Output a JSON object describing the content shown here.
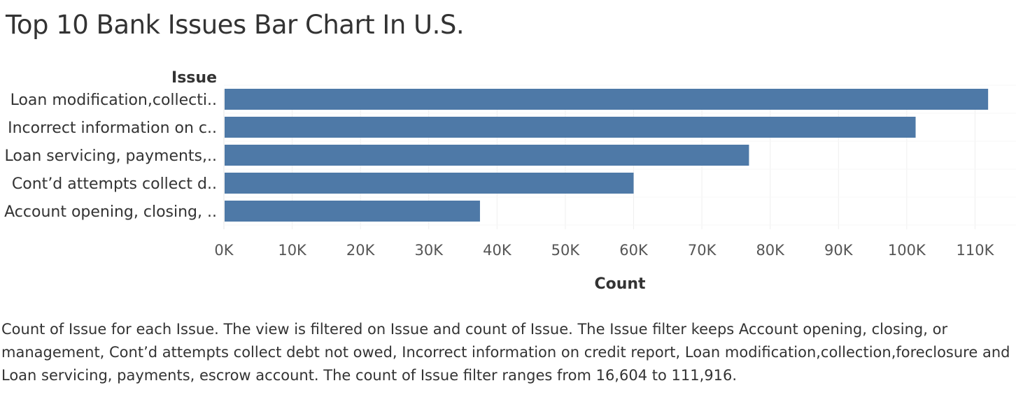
{
  "title": "Top 10 Bank Issues Bar Chart In U.S.",
  "caption": "Count of Issue for each Issue. The view is filtered on Issue and count of Issue. The Issue filter keeps Account opening, closing, or management, Cont’d attempts collect debt not owed, Incorrect information on credit report, Loan modification,collection,foreclosure and Loan servicing, payments, escrow account. The count of Issue filter ranges from 16,604 to 111,916.",
  "chart_data": {
    "type": "bar",
    "orientation": "horizontal",
    "title": "Top 10 Bank Issues Bar Chart In U.S.",
    "ylabel": "Issue",
    "xlabel": "Count",
    "categories": [
      "Loan modification,collecti..",
      "Incorrect information on c..",
      "Loan servicing, payments,..",
      "Cont’d attempts collect d..",
      "Account opening, closing, .."
    ],
    "values": [
      111916,
      101300,
      76900,
      60000,
      37500
    ],
    "xlim": [
      0,
      116000
    ],
    "ticks": [
      0,
      10000,
      20000,
      30000,
      40000,
      50000,
      60000,
      70000,
      80000,
      90000,
      100000,
      110000
    ],
    "tick_labels": [
      "0K",
      "10K",
      "20K",
      "30K",
      "40K",
      "50K",
      "60K",
      "70K",
      "80K",
      "90K",
      "100K",
      "110K"
    ],
    "grid": true,
    "bar_color": "#4e79a7",
    "grid_color": "#efefef"
  }
}
